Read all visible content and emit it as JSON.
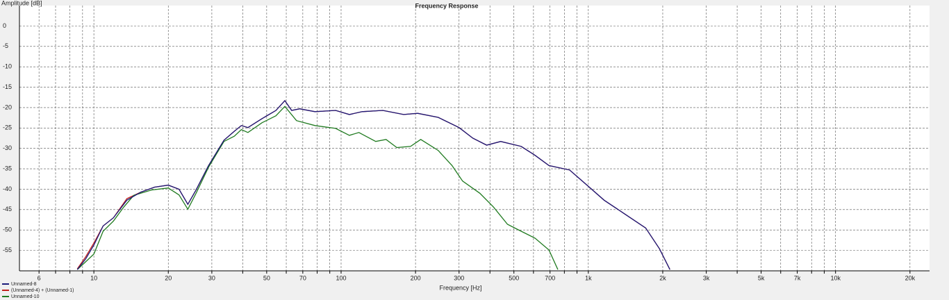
{
  "chart_data": {
    "type": "line",
    "title": "Frequency Response",
    "y_label": "Amplitude [dB]",
    "x_label": "Frequency [Hz]",
    "xscale": "log",
    "grid": true,
    "legend": "bottom-left",
    "xlim": [
      5,
      24000
    ],
    "ylim": [
      -60,
      5
    ],
    "yticks": [
      0,
      -5,
      -10,
      -15,
      -20,
      -25,
      -30,
      -35,
      -40,
      -45,
      -50,
      -55
    ],
    "xticks": [
      6,
      {
        "value": 7,
        "label": null
      },
      {
        "value": 8,
        "label": null
      },
      {
        "value": 9,
        "label": null
      },
      10,
      20,
      30,
      {
        "value": 40,
        "label": null
      },
      50,
      {
        "value": 60,
        "label": null
      },
      70,
      {
        "value": 80,
        "label": null
      },
      {
        "value": 90,
        "label": null
      },
      100,
      200,
      300,
      {
        "value": 400,
        "label": null
      },
      500,
      {
        "value": 600,
        "label": null
      },
      700,
      {
        "value": 800,
        "label": null
      },
      {
        "value": 900,
        "label": null
      },
      {
        "value": 1000,
        "label": "1k"
      },
      {
        "value": 2000,
        "label": "2k"
      },
      {
        "value": 3000,
        "label": "3k"
      },
      {
        "value": 4000,
        "label": null
      },
      {
        "value": 5000,
        "label": "5k"
      },
      {
        "value": 6000,
        "label": null
      },
      {
        "value": 7000,
        "label": "7k"
      },
      {
        "value": 8000,
        "label": null
      },
      {
        "value": 9000,
        "label": null
      },
      {
        "value": 10000,
        "label": "10k"
      },
      {
        "value": 20000,
        "label": "20k"
      }
    ],
    "series": [
      {
        "name": "Unnamed-8",
        "color": "#1a1a7a",
        "x": [
          8.57,
          9.26,
          10,
          10.9,
          12,
          13.6,
          15.5,
          17.6,
          20,
          22.1,
          24,
          25.9,
          29.1,
          33.6,
          37,
          39.5,
          42,
          47.9,
          54.5,
          59.2,
          63.1,
          68,
          78.4,
          95,
          108,
          121.6,
          147.5,
          179,
          204,
          247,
          300,
          341,
          388,
          442,
          535,
          609,
          693,
          840,
          1000,
          1159,
          1406,
          1706,
          1941,
          2138
        ],
        "values": [
          -59.7,
          -57.1,
          -53.7,
          -49,
          -47,
          -42.7,
          -40.7,
          -39.5,
          -39,
          -40,
          -43.7,
          -40.2,
          -34.2,
          -28,
          -25.8,
          -24.4,
          -24.9,
          -22.7,
          -20.7,
          -18.3,
          -20.7,
          -20.3,
          -21,
          -20.7,
          -21.7,
          -21,
          -20.7,
          -21.7,
          -21.4,
          -22.4,
          -24.9,
          -27.5,
          -29.2,
          -28.3,
          -29.5,
          -31.7,
          -34.2,
          -35.3,
          -39.3,
          -42.7,
          -46.1,
          -49.5,
          -54.6,
          -59.7
        ]
      },
      {
        "name": "(Unnamed-4) + (Unnamed-1)",
        "color": "#c0201c",
        "x": [
          8.57,
          9.26,
          10,
          10.9,
          12,
          13.6,
          15.5,
          17.6,
          20,
          22.1,
          24,
          25.9,
          29.1,
          33.6,
          37,
          39.5,
          42,
          47.9,
          54.5,
          59.2,
          63.1,
          68,
          78.4,
          95,
          108,
          121.6,
          147.5,
          179,
          204,
          247,
          300,
          341,
          388,
          442,
          535,
          609,
          693,
          840,
          1000,
          1159,
          1406,
          1706,
          1941,
          2138
        ],
        "values": [
          -59.5,
          -56.6,
          -53.2,
          -49,
          -47,
          -42.3,
          -40.7,
          -39.5,
          -39,
          -40,
          -43.7,
          -40.2,
          -34.2,
          -28,
          -25.8,
          -24.4,
          -24.9,
          -22.7,
          -20.7,
          -18.3,
          -20.7,
          -20.3,
          -21,
          -20.7,
          -21.7,
          -21,
          -20.7,
          -21.7,
          -21.4,
          -22.4,
          -24.9,
          -27.5,
          -29.2,
          -28.3,
          -29.5,
          -31.7,
          -34.2,
          -35.3,
          -39.3,
          -42.7,
          -46.1,
          -49.5,
          -54.6,
          -59.7
        ]
      },
      {
        "name": "Unnamed-10",
        "color": "#1f7a1f",
        "x": [
          8.57,
          10,
          10.9,
          12,
          13.2,
          14.5,
          17.1,
          20,
          22.1,
          24,
          25.9,
          29.1,
          33.6,
          37,
          39.5,
          42,
          47.9,
          54.5,
          59.2,
          66,
          78.4,
          95,
          108,
          118,
          138,
          152,
          168,
          191,
          210,
          247,
          281,
          310,
          364,
          414,
          471,
          535,
          609,
          693,
          753
        ],
        "values": [
          -59.7,
          -55.9,
          -50.3,
          -47.8,
          -44.4,
          -41.5,
          -40.2,
          -39.7,
          -41.4,
          -44.9,
          -41,
          -34.6,
          -28.3,
          -27,
          -25.4,
          -26.1,
          -23.7,
          -22,
          -19.7,
          -23.2,
          -24.4,
          -25.1,
          -26.8,
          -26.1,
          -28.3,
          -27.8,
          -29.8,
          -29.5,
          -27.8,
          -30.5,
          -34.2,
          -38,
          -41,
          -44.4,
          -48.6,
          -50.3,
          -52,
          -54.9,
          -59.7
        ]
      }
    ]
  }
}
